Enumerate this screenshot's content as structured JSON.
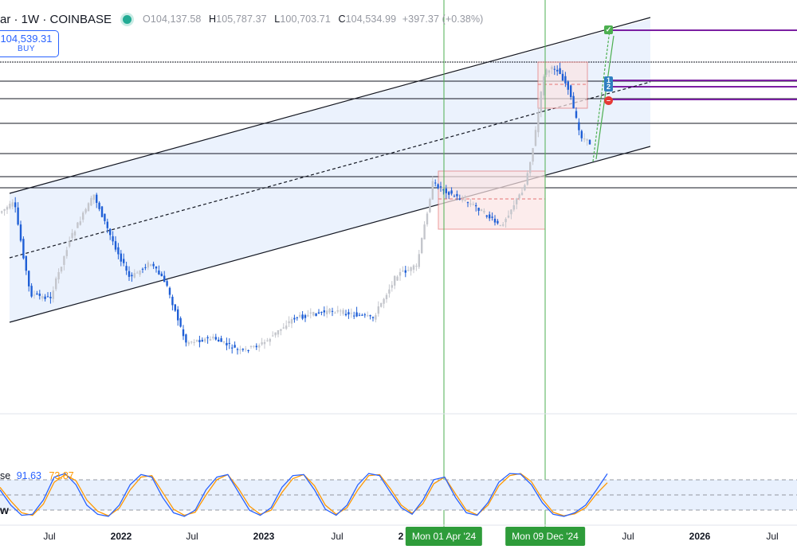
{
  "header": {
    "symbol": "ar · 1W · COINBASE",
    "open_label": "O",
    "open": "104,137.58",
    "high_label": "H",
    "high": "105,787.37",
    "low_label": "L",
    "low": "100,703.71",
    "close_label": "C",
    "close": "104,534.99",
    "change": "+397.37 (+0.38%)"
  },
  "buy_button": {
    "price": "104,539.31",
    "label": "BUY"
  },
  "indicator": {
    "name": "se",
    "k": "91.63",
    "d": "73.87",
    "side_label": "w"
  },
  "x_axis": {
    "ticks": [
      {
        "label": "Jul",
        "year": false
      },
      {
        "label": "2022",
        "year": true
      },
      {
        "label": "Jul",
        "year": false
      },
      {
        "label": "2023",
        "year": true
      },
      {
        "label": "Jul",
        "year": false
      },
      {
        "label": "2",
        "year": true
      },
      {
        "label": "Jul",
        "year": false
      },
      {
        "label": "2026",
        "year": true
      },
      {
        "label": "Jul",
        "year": false
      }
    ]
  },
  "vertical_markers": [
    {
      "label": "Mon 01 Apr '24"
    },
    {
      "label": "Mon 09 Dec '24"
    }
  ],
  "trade_badges": [
    {
      "label": "✓",
      "color": "#4caf50"
    },
    {
      "label": "1",
      "color": "#2f7fc0"
    },
    {
      "label": "2",
      "color": "#2f7fc0"
    },
    {
      "label": "–",
      "color": "#e53935"
    }
  ],
  "colors": {
    "up": "#c4c6cc",
    "down": "#1f5fd6",
    "channel_fill": "#e8f0fd",
    "marker": "#4caf50",
    "k_line": "#2962ff",
    "d_line": "#ff9800",
    "level": "#7b1fa2",
    "range_box": "#e57373"
  },
  "chart_data": {
    "type": "candlestick",
    "series": [
      {
        "name": "stochastic-k",
        "values": [
          60,
          30,
          10,
          12,
          40,
          85,
          92,
          70,
          30,
          12,
          8,
          30,
          70,
          90,
          85,
          45,
          15,
          8,
          20,
          60,
          85,
          90,
          55,
          20,
          10,
          25,
          65,
          88,
          90,
          60,
          22,
          10,
          30,
          70,
          92,
          88,
          55,
          25,
          12,
          40,
          80,
          85,
          45,
          15,
          10,
          35,
          75,
          92,
          91,
          70,
          35,
          12,
          8,
          15,
          30,
          60,
          91.63
        ]
      },
      {
        "name": "stochastic-d",
        "values": [
          65,
          38,
          15,
          10,
          32,
          75,
          90,
          78,
          40,
          18,
          9,
          24,
          60,
          85,
          88,
          55,
          22,
          10,
          16,
          50,
          80,
          90,
          62,
          28,
          12,
          20,
          55,
          82,
          90,
          68,
          30,
          12,
          25,
          60,
          88,
          90,
          62,
          30,
          14,
          33,
          72,
          85,
          52,
          20,
          11,
          30,
          68,
          88,
          92,
          76,
          42,
          16,
          9,
          13,
          25,
          52,
          73.87
        ]
      }
    ]
  }
}
